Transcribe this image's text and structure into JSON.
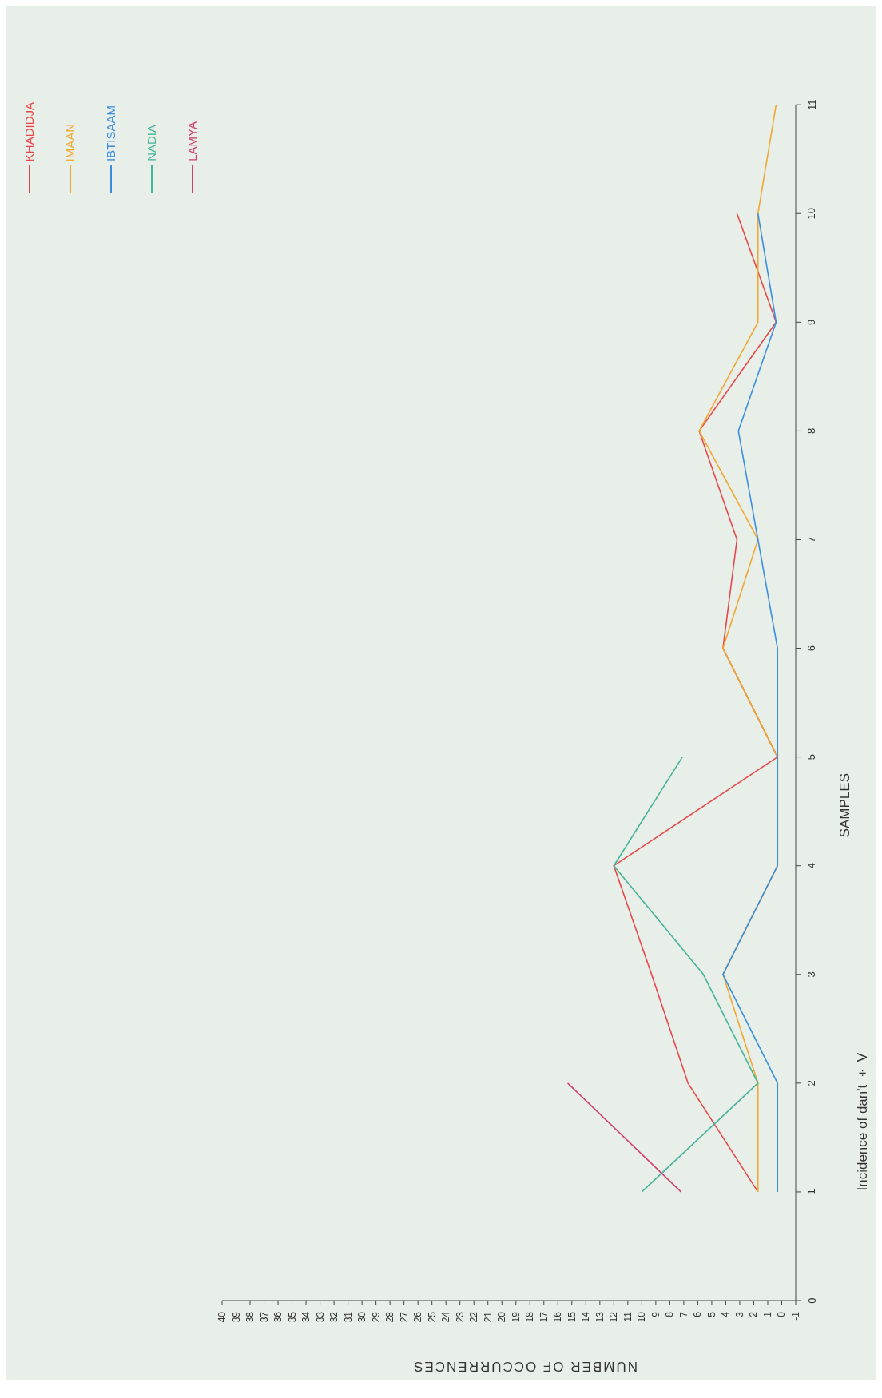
{
  "chart_data": {
    "type": "line",
    "title": "Incidence of dan't ÷ V",
    "xlabel": "NUMBER OF OCCURRENCES",
    "ylabel": "SAMPLES",
    "series": [
      {
        "name": "KHADIDJA",
        "color": "#e8474a",
        "x": [
          1.7,
          6.7,
          9.3,
          12.0,
          0.3,
          4.2,
          3.2,
          5.9,
          0.4,
          3.2
        ],
        "values": [
          1,
          2,
          3,
          4,
          5,
          6,
          7,
          8,
          9,
          10
        ]
      },
      {
        "name": "IMAAN",
        "color": "#f0a830",
        "x": [
          1.7,
          1.7,
          4.2,
          0.3,
          0.3,
          4.2,
          1.7,
          5.9,
          1.7,
          1.7,
          0.4
        ],
        "values": [
          1,
          2,
          3,
          4,
          5,
          6,
          7,
          8,
          9,
          10,
          11
        ]
      },
      {
        "name": "IBTISAAM",
        "color": "#3a8ee0",
        "x": [
          0.3,
          0.3,
          4.2,
          0.3,
          0.3,
          0.3,
          1.7,
          3.1,
          0.4,
          1.7
        ],
        "values": [
          1,
          2,
          3,
          4,
          5,
          6,
          7,
          8,
          9,
          10
        ]
      },
      {
        "name": "NADIA",
        "color": "#45b39a",
        "x": [
          10.0,
          1.7,
          5.6,
          12.0,
          7.1
        ],
        "values": [
          1,
          2,
          3,
          4,
          5
        ]
      },
      {
        "name": "LAMYA",
        "color": "#d0406a",
        "x": [
          7.2,
          15.3
        ],
        "values": [
          1,
          2
        ]
      }
    ],
    "xlim": [
      40,
      -1
    ],
    "xticks": [
      40,
      39,
      38,
      37,
      36,
      35,
      34,
      33,
      32,
      31,
      30,
      29,
      28,
      27,
      26,
      25,
      24,
      23,
      22,
      21,
      20,
      19,
      18,
      17,
      16,
      15,
      14,
      13,
      12,
      11,
      10,
      9,
      8,
      7,
      6,
      5,
      4,
      3,
      2,
      1,
      0,
      -1
    ],
    "ylim": [
      0,
      11
    ],
    "yticks": [
      0,
      1,
      2,
      3,
      4,
      5,
      6,
      7,
      8,
      9,
      10,
      11
    ],
    "legend": "top left",
    "marker": "none",
    "line_style": "solid"
  }
}
